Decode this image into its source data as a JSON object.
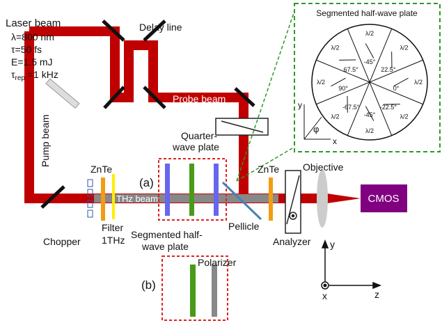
{
  "laser": {
    "title": "Laser beam",
    "wavelength": "λ=800 nm",
    "duration": "τ=50 fs",
    "energy": "E=1.5 mJ",
    "rep": {
      "base": "τ",
      "sub": "rep",
      "rest": " =1 kHz"
    }
  },
  "labels": {
    "delay_line": "Delay line",
    "probe_beam": "Probe beam",
    "pump_beam": "Pump beam",
    "quarter_wave": [
      "Quarter-",
      "wave plate"
    ],
    "znte_1": "ZnTe",
    "znte_2": "ZnTe",
    "panel_a": "(a)",
    "thz_beam": "THz beam",
    "filter": [
      "Filter",
      "1THz"
    ],
    "chopper": "Chopper",
    "segmented": [
      "Segmented half-",
      "wave plate"
    ],
    "pellicle": "Pellicle",
    "analyzer": "Analyzer",
    "objective": "Objective",
    "cmos": "CMOS",
    "polarizer": "Polarizer",
    "panel_b": "(b)"
  },
  "axes": {
    "y": "y",
    "x": "x",
    "z": "z"
  },
  "inset": {
    "title": "Segmented half-wave plate",
    "sectors": [
      {
        "label": "λ/2",
        "angle": "0°"
      },
      {
        "label": "λ/2",
        "angle": "22.5°"
      },
      {
        "label": "λ/2",
        "angle": "-45°"
      },
      {
        "label": "λ/2",
        "angle": "67.5°"
      },
      {
        "label": "λ/2",
        "angle": "90°"
      },
      {
        "label": "λ/2",
        "angle": "-67.5°"
      },
      {
        "label": "λ/2",
        "angle": "-45°"
      },
      {
        "label": "λ/2",
        "angle": "-22.5°"
      }
    ],
    "axes": {
      "y": "y",
      "phi": "φ",
      "x": "x"
    }
  }
}
